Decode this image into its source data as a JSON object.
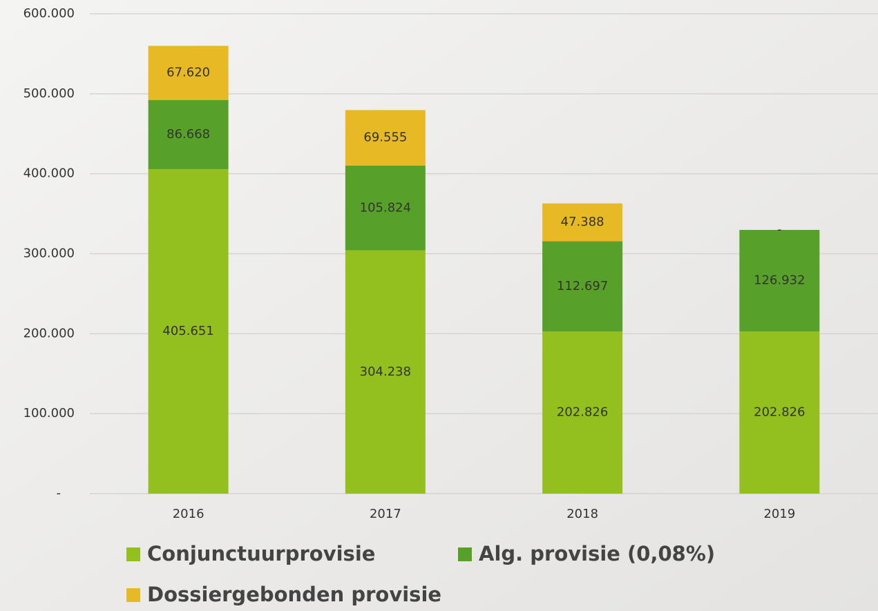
{
  "chart_data": {
    "type": "stacked-bar",
    "categories": [
      "2016",
      "2017",
      "2018",
      "2019"
    ],
    "series": [
      {
        "name": "Conjunctuurprovisie",
        "color": "#93c01f",
        "values": [
          405651,
          304238,
          202826,
          202826
        ],
        "value_labels": [
          "405.651",
          "304.238",
          "202.826",
          "202.826"
        ]
      },
      {
        "name": "Alg. provisie (0,08%)",
        "color": "#57a12a",
        "values": [
          86668,
          105824,
          112697,
          126932
        ],
        "value_labels": [
          "86.668",
          "105.824",
          "112.697",
          "126.932"
        ]
      },
      {
        "name": "Dossiergebonden provisie",
        "color": "#e6b925",
        "values": [
          67620,
          69555,
          47388,
          0
        ],
        "value_labels": [
          "67.620",
          "69.555",
          "47.388",
          "-"
        ]
      }
    ],
    "ylim": [
      0,
      600000
    ],
    "yticks": [
      {
        "value": 0,
        "label": "-"
      },
      {
        "value": 100000,
        "label": "100.000"
      },
      {
        "value": 200000,
        "label": "200.000"
      },
      {
        "value": 300000,
        "label": "300.000"
      },
      {
        "value": 400000,
        "label": "400.000"
      },
      {
        "value": 500000,
        "label": "500.000"
      },
      {
        "value": 600000,
        "label": "600.000"
      }
    ],
    "grid": true
  }
}
